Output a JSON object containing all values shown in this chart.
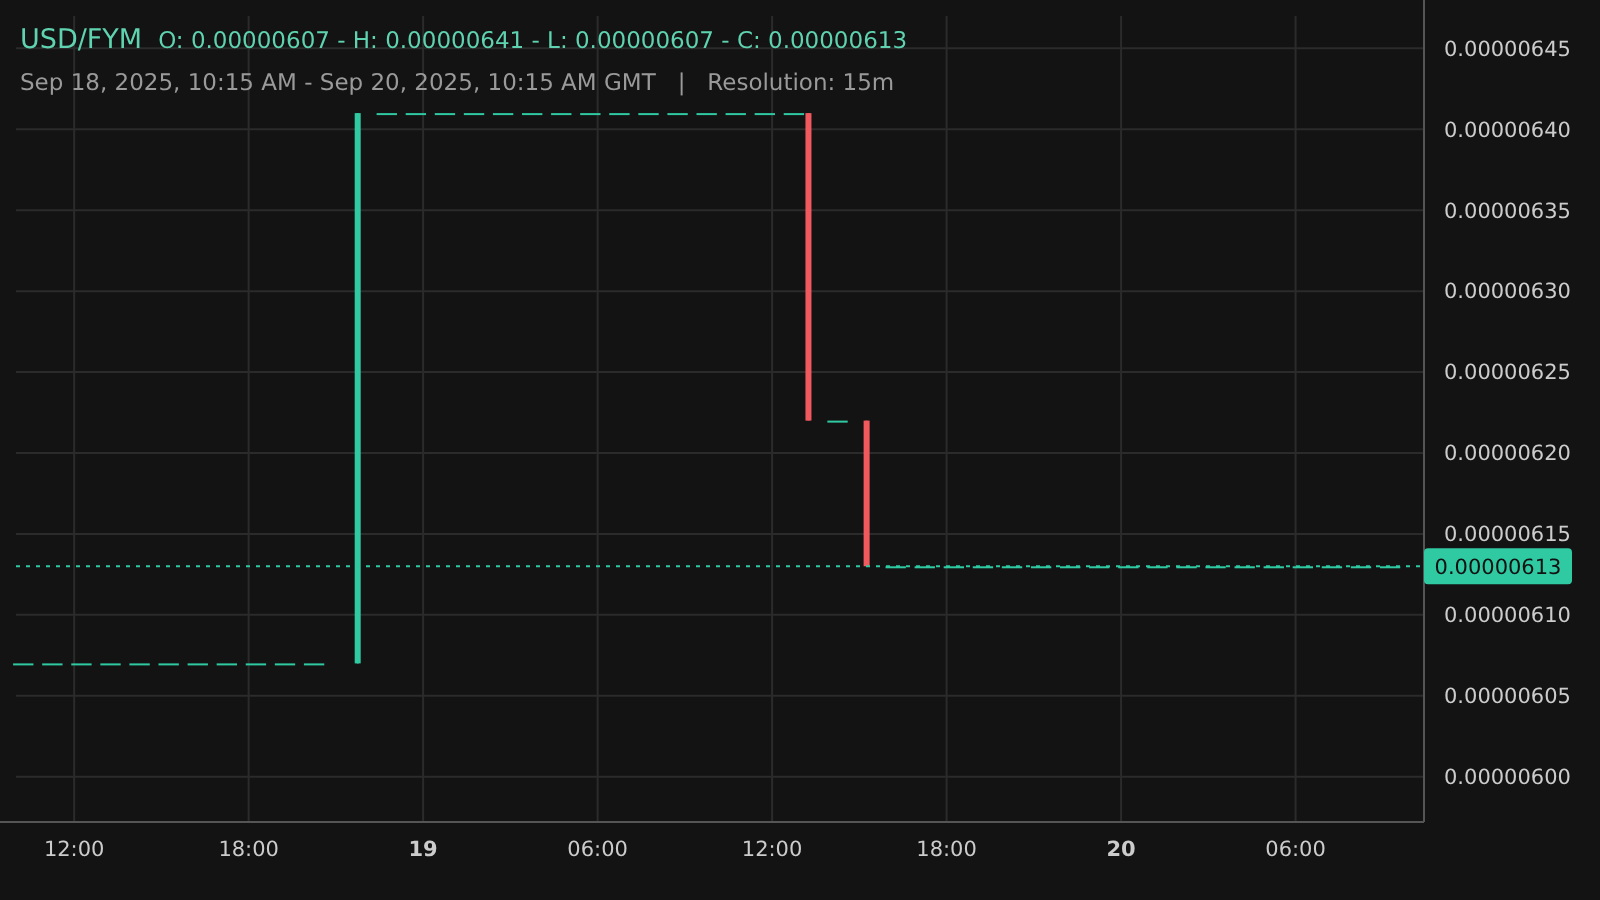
{
  "chart_data": {
    "type": "candlestick",
    "title": "USD/FYM",
    "subtitle": "Sep 18, 2025, 10:15 AM - Sep 20, 2025, 10:15 AM GMT   |   Resolution: 15m",
    "annotations": [
      "O: 0.00000607 - H: 0.00000641 - L: 0.00000607 - C: 0.00000613"
    ],
    "colors": [
      "#2fc9a2",
      "#2fc9a2",
      "#2fc9a2",
      "#2fc9a2",
      "#2fc9a2",
      "#2fc9a2",
      "#2fc9a2",
      "#2fc9a2",
      "#2fc9a2",
      "#2fc9a2",
      "#2fc9a2",
      "#2fc9a2",
      "#2fc9a2",
      "#2fc9a2",
      "#2fc9a2",
      "#2fc9a2",
      "#2fc9a2",
      "#2fc9a2",
      "#2fc9a2",
      "#2fc9a2",
      "#2fc9a2",
      "#2fc9a2",
      "#2fc9a2",
      "#2fc9a2",
      "#2fc9a2",
      "#2fc9a2",
      "#2fc9a2",
      "#f05a5f",
      "#2fc9a2",
      "#f05a5f",
      "#2fc9a2",
      "#2fc9a2",
      "#2fc9a2",
      "#2fc9a2",
      "#2fc9a2",
      "#2fc9a2",
      "#2fc9a2",
      "#2fc9a2",
      "#2fc9a2",
      "#2fc9a2",
      "#2fc9a2",
      "#2fc9a2",
      "#2fc9a2",
      "#2fc9a2",
      "#2fc9a2",
      "#2fc9a2",
      "#2fc9a2",
      "#2fc9a2"
    ],
    "x": [
      "2025-09-18T10:15",
      "2025-09-18T11:15",
      "2025-09-18T12:15",
      "2025-09-18T13:15",
      "2025-09-18T14:15",
      "2025-09-18T15:15",
      "2025-09-18T16:15",
      "2025-09-18T17:15",
      "2025-09-18T18:15",
      "2025-09-18T19:15",
      "2025-09-18T20:15",
      "2025-09-18T21:45",
      "2025-09-18T22:45",
      "2025-09-18T23:45",
      "2025-09-19T00:45",
      "2025-09-19T01:45",
      "2025-09-19T02:45",
      "2025-09-19T03:45",
      "2025-09-19T04:45",
      "2025-09-19T05:45",
      "2025-09-19T06:45",
      "2025-09-19T07:45",
      "2025-09-19T08:45",
      "2025-09-19T09:45",
      "2025-09-19T10:45",
      "2025-09-19T11:45",
      "2025-09-19T12:45",
      "2025-09-19T13:15",
      "2025-09-19T14:15",
      "2025-09-19T15:15",
      "2025-09-19T16:15",
      "2025-09-19T17:15",
      "2025-09-19T18:15",
      "2025-09-19T19:15",
      "2025-09-19T20:15",
      "2025-09-19T21:15",
      "2025-09-19T22:15",
      "2025-09-19T23:15",
      "2025-09-20T00:15",
      "2025-09-20T01:15",
      "2025-09-20T02:15",
      "2025-09-20T03:15",
      "2025-09-20T04:15",
      "2025-09-20T05:15",
      "2025-09-20T06:15",
      "2025-09-20T07:15",
      "2025-09-20T08:15",
      "2025-09-20T09:15"
    ],
    "ohlc": [
      [
        6.07e-06,
        6.07e-06,
        6.07e-06,
        6.07e-06
      ],
      [
        6.07e-06,
        6.07e-06,
        6.07e-06,
        6.07e-06
      ],
      [
        6.07e-06,
        6.07e-06,
        6.07e-06,
        6.07e-06
      ],
      [
        6.07e-06,
        6.07e-06,
        6.07e-06,
        6.07e-06
      ],
      [
        6.07e-06,
        6.07e-06,
        6.07e-06,
        6.07e-06
      ],
      [
        6.07e-06,
        6.07e-06,
        6.07e-06,
        6.07e-06
      ],
      [
        6.07e-06,
        6.07e-06,
        6.07e-06,
        6.07e-06
      ],
      [
        6.07e-06,
        6.07e-06,
        6.07e-06,
        6.07e-06
      ],
      [
        6.07e-06,
        6.07e-06,
        6.07e-06,
        6.07e-06
      ],
      [
        6.07e-06,
        6.07e-06,
        6.07e-06,
        6.07e-06
      ],
      [
        6.07e-06,
        6.07e-06,
        6.07e-06,
        6.07e-06
      ],
      [
        6.07e-06,
        6.41e-06,
        6.07e-06,
        6.41e-06
      ],
      [
        6.41e-06,
        6.41e-06,
        6.41e-06,
        6.41e-06
      ],
      [
        6.41e-06,
        6.41e-06,
        6.41e-06,
        6.41e-06
      ],
      [
        6.41e-06,
        6.41e-06,
        6.41e-06,
        6.41e-06
      ],
      [
        6.41e-06,
        6.41e-06,
        6.41e-06,
        6.41e-06
      ],
      [
        6.41e-06,
        6.41e-06,
        6.41e-06,
        6.41e-06
      ],
      [
        6.41e-06,
        6.41e-06,
        6.41e-06,
        6.41e-06
      ],
      [
        6.41e-06,
        6.41e-06,
        6.41e-06,
        6.41e-06
      ],
      [
        6.41e-06,
        6.41e-06,
        6.41e-06,
        6.41e-06
      ],
      [
        6.41e-06,
        6.41e-06,
        6.41e-06,
        6.41e-06
      ],
      [
        6.41e-06,
        6.41e-06,
        6.41e-06,
        6.41e-06
      ],
      [
        6.41e-06,
        6.41e-06,
        6.41e-06,
        6.41e-06
      ],
      [
        6.41e-06,
        6.41e-06,
        6.41e-06,
        6.41e-06
      ],
      [
        6.41e-06,
        6.41e-06,
        6.41e-06,
        6.41e-06
      ],
      [
        6.41e-06,
        6.41e-06,
        6.41e-06,
        6.41e-06
      ],
      [
        6.41e-06,
        6.41e-06,
        6.41e-06,
        6.41e-06
      ],
      [
        6.41e-06,
        6.41e-06,
        6.22e-06,
        6.22e-06
      ],
      [
        6.22e-06,
        6.22e-06,
        6.22e-06,
        6.22e-06
      ],
      [
        6.22e-06,
        6.22e-06,
        6.13e-06,
        6.13e-06
      ],
      [
        6.13e-06,
        6.13e-06,
        6.13e-06,
        6.13e-06
      ],
      [
        6.13e-06,
        6.13e-06,
        6.13e-06,
        6.13e-06
      ],
      [
        6.13e-06,
        6.13e-06,
        6.13e-06,
        6.13e-06
      ],
      [
        6.13e-06,
        6.13e-06,
        6.13e-06,
        6.13e-06
      ],
      [
        6.13e-06,
        6.13e-06,
        6.13e-06,
        6.13e-06
      ],
      [
        6.13e-06,
        6.13e-06,
        6.13e-06,
        6.13e-06
      ],
      [
        6.13e-06,
        6.13e-06,
        6.13e-06,
        6.13e-06
      ],
      [
        6.13e-06,
        6.13e-06,
        6.13e-06,
        6.13e-06
      ],
      [
        6.13e-06,
        6.13e-06,
        6.13e-06,
        6.13e-06
      ],
      [
        6.13e-06,
        6.13e-06,
        6.13e-06,
        6.13e-06
      ],
      [
        6.13e-06,
        6.13e-06,
        6.13e-06,
        6.13e-06
      ],
      [
        6.13e-06,
        6.13e-06,
        6.13e-06,
        6.13e-06
      ],
      [
        6.13e-06,
        6.13e-06,
        6.13e-06,
        6.13e-06
      ],
      [
        6.13e-06,
        6.13e-06,
        6.13e-06,
        6.13e-06
      ],
      [
        6.13e-06,
        6.13e-06,
        6.13e-06,
        6.13e-06
      ],
      [
        6.13e-06,
        6.13e-06,
        6.13e-06,
        6.13e-06
      ],
      [
        6.13e-06,
        6.13e-06,
        6.13e-06,
        6.13e-06
      ],
      [
        6.13e-06,
        6.13e-06,
        6.13e-06,
        6.13e-06
      ]
    ],
    "xlim": [
      "2025-09-18T10:00",
      "2025-09-20T10:25"
    ],
    "xticks": [
      {
        "value": "2025-09-18T12:00",
        "label": "12:00"
      },
      {
        "value": "2025-09-18T18:00",
        "label": "18:00"
      },
      {
        "value": "2025-09-19T00:00",
        "label": "19"
      },
      {
        "value": "2025-09-19T06:00",
        "label": "06:00"
      },
      {
        "value": "2025-09-19T12:00",
        "label": "12:00"
      },
      {
        "value": "2025-09-19T18:00",
        "label": "18:00"
      },
      {
        "value": "2025-09-20T00:00",
        "label": "20"
      },
      {
        "value": "2025-09-20T06:00",
        "label": "06:00"
      }
    ],
    "ylim": [
      5.972e-06,
      6.47e-06
    ],
    "yticks": [
      {
        "value": 6e-06,
        "label": "0.00000600"
      },
      {
        "value": 6.05e-06,
        "label": "0.00000605"
      },
      {
        "value": 6.1e-06,
        "label": "0.00000610"
      },
      {
        "value": 6.15e-06,
        "label": "0.00000615"
      },
      {
        "value": 6.2e-06,
        "label": "0.00000620"
      },
      {
        "value": 6.25e-06,
        "label": "0.00000625"
      },
      {
        "value": 6.3e-06,
        "label": "0.00000630"
      },
      {
        "value": 6.35e-06,
        "label": "0.00000635"
      },
      {
        "value": 6.4e-06,
        "label": "0.00000640"
      },
      {
        "value": 6.45e-06,
        "label": "0.00000645"
      }
    ],
    "grid": true,
    "ref_lines": [
      {
        "axis": "y",
        "value": 6.13e-06,
        "label": "0.00000613",
        "color": "#2fc9a2",
        "line_style": "dotted"
      }
    ]
  }
}
